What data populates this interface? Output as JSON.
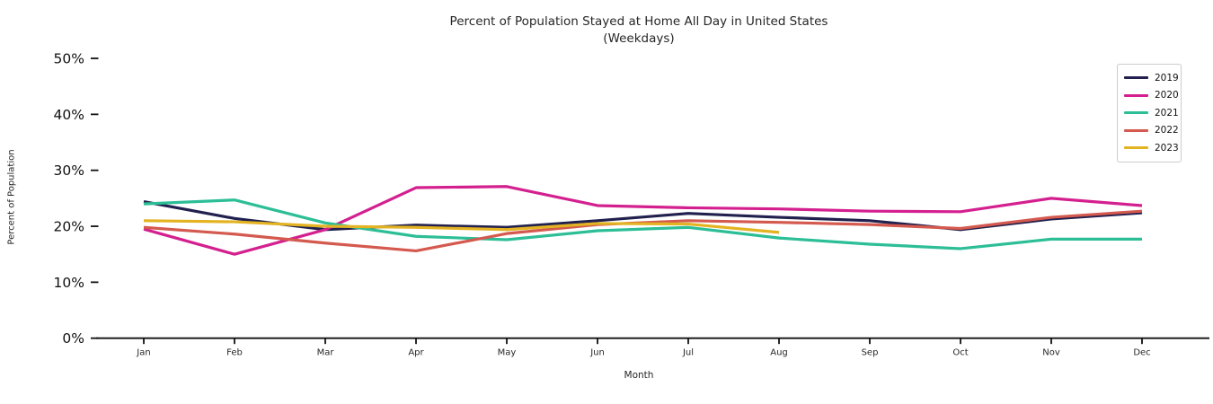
{
  "title": {
    "line1": "Percent of Population Stayed at Home All Day in United States",
    "line2": "(Weekdays)"
  },
  "chart_data": {
    "type": "line",
    "title": "Percent of Population Stayed at Home All Day in United States (Weekdays)",
    "xlabel": "Month",
    "ylabel": "Percent of Population",
    "categories": [
      "Jan",
      "Feb",
      "Mar",
      "Apr",
      "May",
      "Jun",
      "Jul",
      "Aug",
      "Sep",
      "Oct",
      "Nov",
      "Dec"
    ],
    "ylim": [
      0,
      50
    ],
    "yticks": [
      0,
      10,
      20,
      30,
      40,
      50
    ],
    "ytick_labels": [
      "0%",
      "10%",
      "20%",
      "30%",
      "40%",
      "50%"
    ],
    "grid": false,
    "legend_position": "upper right",
    "series": [
      {
        "name": "2019",
        "color": "#21204e",
        "values": [
          24.4,
          21.4,
          19.4,
          20.2,
          19.8,
          21.0,
          22.3,
          21.6,
          21.0,
          19.4,
          21.3,
          22.4
        ]
      },
      {
        "name": "2020",
        "color": "#d4208f",
        "values": [
          19.5,
          15.0,
          19.4,
          26.9,
          27.1,
          23.7,
          23.3,
          23.1,
          22.7,
          22.6,
          25.0,
          23.7
        ]
      },
      {
        "name": "2021",
        "color": "#2cbe96",
        "values": [
          24.0,
          24.7,
          20.6,
          18.2,
          17.6,
          19.2,
          19.8,
          17.9,
          16.8,
          16.0,
          17.7,
          17.7
        ]
      },
      {
        "name": "2022",
        "color": "#d4594e",
        "values": [
          19.8,
          18.6,
          17.0,
          15.6,
          18.7,
          20.3,
          21.0,
          20.7,
          20.3,
          19.6,
          21.6,
          22.7
        ]
      },
      {
        "name": "2023",
        "color": "#e3b322",
        "values": [
          21.0,
          20.8,
          20.0,
          19.8,
          19.4,
          20.5,
          20.4,
          18.9
        ]
      }
    ]
  }
}
